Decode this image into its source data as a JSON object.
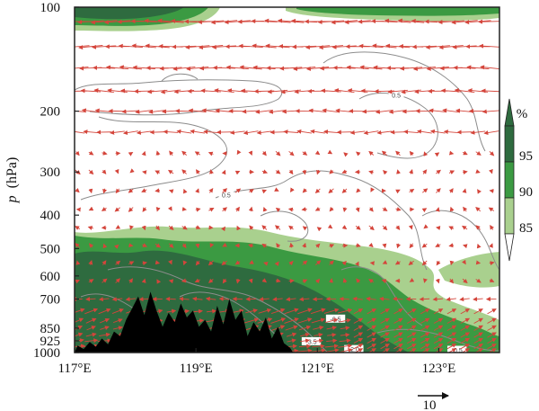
{
  "chart_data": {
    "type": "heatmap",
    "title": "",
    "xlabel": "",
    "ylabel_symbol": "p",
    "ylabel_unit": "(hPa)",
    "x_range": [
      117,
      124
    ],
    "x_ticks": [
      {
        "value": 117,
        "label": "117°E"
      },
      {
        "value": 119,
        "label": "119°E"
      },
      {
        "value": 121,
        "label": "121°E"
      },
      {
        "value": 123,
        "label": "123°E"
      }
    ],
    "y_scale": "log",
    "y_range": [
      1000,
      100
    ],
    "y_ticks": [
      1000,
      925,
      850,
      700,
      600,
      500,
      400,
      300,
      200,
      100
    ],
    "shading": {
      "variable_unit": "%",
      "levels": [
        85,
        90,
        95
      ],
      "colors": [
        "#a9d08e",
        "#3b9a42",
        "#2e6b3f"
      ]
    },
    "reference_vector": {
      "label": "10"
    },
    "contour_labels": [
      {
        "x": 119.5,
        "p": 350,
        "text": "0.5"
      },
      {
        "x": 122.3,
        "p": 180,
        "text": "0.5"
      },
      {
        "x": 118.3,
        "p": 870,
        "text": "-1.5"
      },
      {
        "x": 119.6,
        "p": 880,
        "text": "-2.5"
      },
      {
        "x": 120.9,
        "p": 930,
        "text": "-3.5"
      },
      {
        "x": 121.6,
        "p": 980,
        "text": "-2.0"
      },
      {
        "x": 118.8,
        "p": 960,
        "text": "-1"
      },
      {
        "x": 121.3,
        "p": 800,
        "text": "-0.5"
      },
      {
        "x": 123.3,
        "p": 985,
        "text": "-0.5"
      }
    ],
    "terrain": [
      [
        117.0,
        0
      ],
      [
        117.05,
        30
      ],
      [
        117.15,
        15
      ],
      [
        117.25,
        45
      ],
      [
        117.35,
        25
      ],
      [
        117.45,
        60
      ],
      [
        117.55,
        35
      ],
      [
        117.65,
        90
      ],
      [
        117.75,
        70
      ],
      [
        117.85,
        140
      ],
      [
        117.95,
        190
      ],
      [
        118.05,
        240
      ],
      [
        118.15,
        160
      ],
      [
        118.25,
        260
      ],
      [
        118.35,
        180
      ],
      [
        118.45,
        110
      ],
      [
        118.55,
        170
      ],
      [
        118.65,
        130
      ],
      [
        118.75,
        210
      ],
      [
        118.85,
        150
      ],
      [
        118.95,
        180
      ],
      [
        119.05,
        110
      ],
      [
        119.15,
        140
      ],
      [
        119.25,
        90
      ],
      [
        119.35,
        200
      ],
      [
        119.45,
        120
      ],
      [
        119.55,
        230
      ],
      [
        119.65,
        140
      ],
      [
        119.75,
        180
      ],
      [
        119.85,
        70
      ],
      [
        119.95,
        130
      ],
      [
        120.05,
        90
      ],
      [
        120.15,
        150
      ],
      [
        120.25,
        60
      ],
      [
        120.35,
        110
      ],
      [
        120.45,
        40
      ],
      [
        120.55,
        20
      ],
      [
        120.6,
        0
      ]
    ]
  }
}
